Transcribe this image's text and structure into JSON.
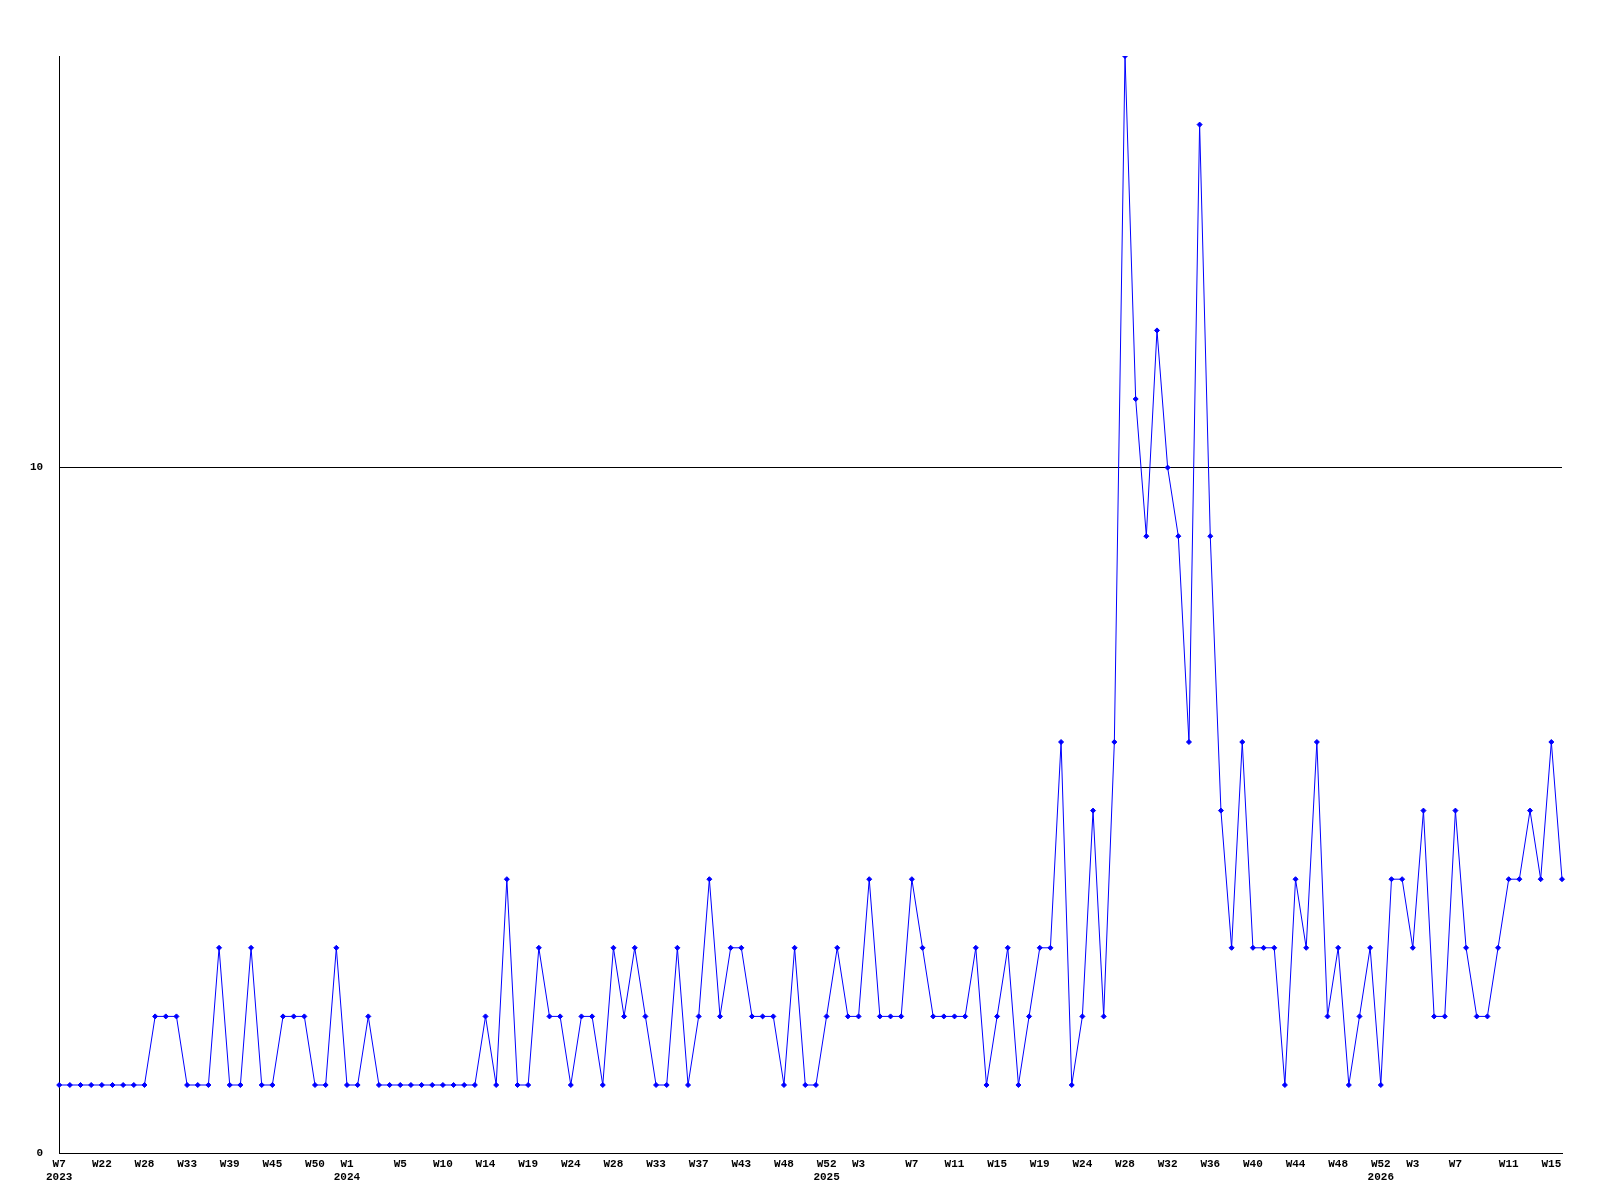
{
  "chart_data": {
    "type": "line",
    "categories": [
      "W7\n2023",
      null,
      null,
      null,
      "W22",
      null,
      null,
      null,
      "W28",
      null,
      null,
      null,
      "W33",
      null,
      null,
      null,
      "W39",
      null,
      null,
      null,
      "W45",
      null,
      null,
      null,
      "W50",
      null,
      null,
      "W1\n2024",
      null,
      null,
      null,
      null,
      "W5",
      null,
      null,
      null,
      "W10",
      null,
      null,
      null,
      "W14",
      null,
      null,
      null,
      "W19",
      null,
      null,
      null,
      "W24",
      null,
      null,
      null,
      "W28",
      null,
      null,
      null,
      "W33",
      null,
      null,
      null,
      "W37",
      null,
      null,
      null,
      "W43",
      null,
      null,
      null,
      "W48",
      null,
      null,
      null,
      "W52\n2025",
      null,
      null,
      "W3",
      null,
      null,
      null,
      null,
      "W7",
      null,
      null,
      null,
      "W11",
      null,
      null,
      null,
      "W15",
      null,
      null,
      null,
      "W19",
      null,
      null,
      null,
      "W24",
      null,
      null,
      null,
      "W28",
      null,
      null,
      null,
      "W32",
      null,
      null,
      null,
      "W36",
      null,
      null,
      null,
      "W40",
      null,
      null,
      null,
      "W44",
      null,
      null,
      null,
      "W48",
      null,
      null,
      null,
      "W52\n2026",
      null,
      null,
      "W3",
      null,
      null,
      null,
      "W7",
      null,
      null,
      null,
      null,
      "W11",
      null,
      null,
      null,
      "W15",
      null
    ],
    "series": [
      {
        "color": "#0000ff",
        "values": [
          1,
          1,
          1,
          1,
          1,
          1,
          1,
          1,
          1,
          2,
          2,
          2,
          1,
          1,
          1,
          3,
          1,
          1,
          3,
          1,
          1,
          2,
          2,
          2,
          1,
          1,
          3,
          1,
          1,
          2,
          1,
          1,
          1,
          1,
          1,
          1,
          1,
          1,
          1,
          1,
          2,
          1,
          4,
          1,
          1,
          3,
          2,
          2,
          1,
          2,
          2,
          1,
          3,
          2,
          3,
          2,
          1,
          1,
          3,
          1,
          2,
          4,
          2,
          3,
          3,
          2,
          2,
          2,
          1,
          3,
          1,
          1,
          2,
          3,
          2,
          2,
          4,
          2,
          2,
          2,
          4,
          3,
          2,
          2,
          2,
          2,
          3,
          1,
          2,
          3,
          1,
          2,
          3,
          3,
          6,
          1,
          2,
          5,
          2,
          6,
          16,
          11,
          9,
          12,
          10,
          9,
          6,
          15,
          9,
          5,
          3,
          6,
          3,
          3,
          3,
          1,
          4,
          3,
          6,
          2,
          3,
          1,
          2,
          3,
          1,
          4,
          4,
          3,
          5,
          2,
          2,
          5,
          3,
          2,
          2,
          3,
          4,
          4,
          5,
          4,
          6,
          4
        ]
      }
    ],
    "ylim": [
      0,
      16
    ],
    "yticks": [
      0,
      10
    ],
    "grid": "y",
    "marker": "diamond",
    "line_style": "solid"
  }
}
